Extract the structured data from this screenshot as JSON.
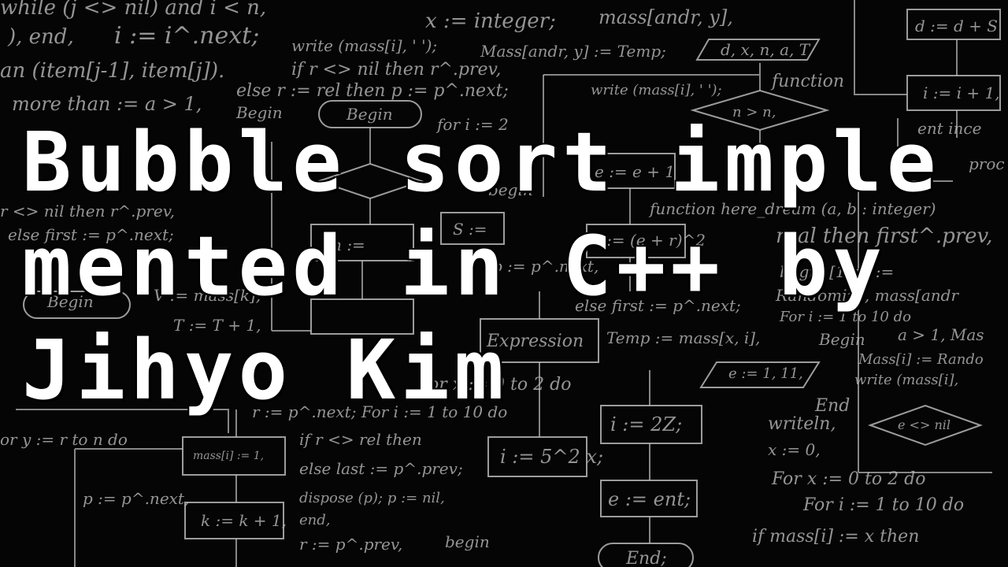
{
  "title": "Bubble sort implemented in C++ by Jihyo Kim",
  "background": {
    "description_icon": "flowchart-chalkboard",
    "snippets": [
      "while (j <> nil) and i < n,",
      "), end,",
      "i := i^.next;",
      "an (item[j-1], item[j]).",
      "more than := a > 1,",
      "x := integer;",
      "mass[andr, y],",
      "write (mass[i], ' ');",
      "Mass[andr, y] := Temp;",
      "if r <> nil then r^.prev,",
      "else r := rel then p := p^.next;",
      "Begin",
      "for i := 2",
      "begin",
      "write (mass[i], ' ');",
      "function",
      "n > n,",
      "e := e + 1",
      "e := (e + r)^2",
      "function here_dream (a, b : integer)",
      "real then first^.prev,",
      "begin [1, y] :=",
      "Randomize, mass[andr",
      "For i := 1 to 10 do",
      "Begin",
      "a > 1, Mas",
      "Mass[i] := Rando",
      "write (mass[i],",
      "Expression",
      "Temp := mass[x, i],",
      "else first := p^.next;",
      "p := p^.next,",
      "e := 1, 11,",
      "i := 2Z;",
      "i := 5^2 x;",
      "e := ent;",
      "End;",
      "End",
      "writeln,",
      "x := 0,",
      "For x := 0 to 2 do",
      "For i := 1 to 10 do",
      "if mass[i] := x then",
      "e <> nil",
      "r <> nil then r^.prev,",
      "else first := p^.next;",
      "r := p^.next; For i := 1 to 10 do",
      "if r <> rel then",
      "else last := p^.prev;",
      "dispose (p); p := nil,",
      "end,",
      "r := p^.prev,",
      "begin",
      "mass[i] := 1,",
      "k := k + 1,",
      "p := p^.next,",
      "or y := r to n do",
      "T := T + 1,",
      "d := d + S",
      "i := i + 1,",
      "ent ince",
      "proc",
      "d, x, n, a, T",
      "S :=",
      "m :=",
      "V := mass[k],",
      "Begin",
      "For x := 0 to 2 do"
    ]
  }
}
